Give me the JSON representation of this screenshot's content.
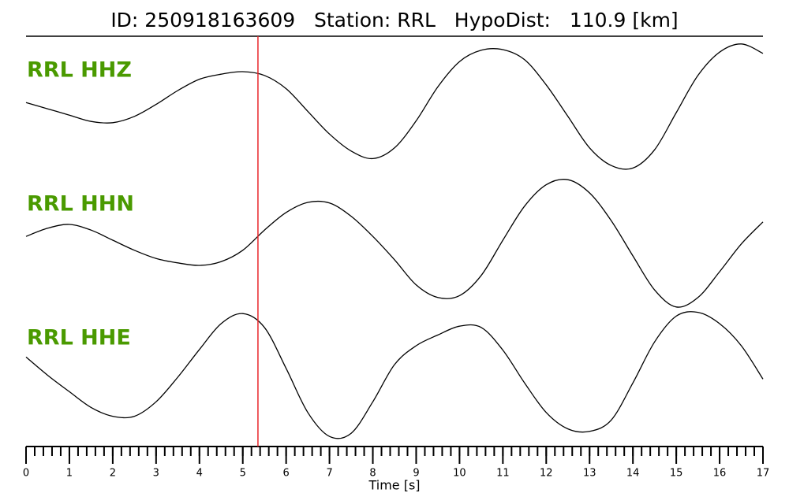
{
  "chart_data": {
    "type": "line",
    "title": "ID: 250918163609   Station: RRL   HypoDist:   110.9 [km]",
    "x_label": "Time [s]",
    "xlim": [
      0,
      17
    ],
    "xticks": [
      0,
      1,
      2,
      3,
      4,
      5,
      6,
      7,
      8,
      9,
      10,
      11,
      12,
      13,
      14,
      15,
      16,
      17
    ],
    "x_minor_tick_step": 0.2,
    "ylim": [
      -1,
      1
    ],
    "pick_time": 5.35,
    "pick_color": "#e8262a",
    "x": [
      0,
      0.5,
      1,
      1.5,
      2,
      2.5,
      3,
      3.5,
      4,
      4.5,
      5,
      5.5,
      6,
      6.5,
      7,
      7.5,
      8,
      8.5,
      9,
      9.5,
      10,
      10.5,
      11,
      11.5,
      12,
      12.5,
      13,
      13.5,
      14,
      14.5,
      15,
      15.5,
      16,
      16.5,
      17
    ],
    "series": [
      {
        "name": "RRL HHZ",
        "color": "#000000",
        "label_color": "#4a9a00",
        "values": [
          0.06,
          -0.04,
          -0.14,
          -0.24,
          -0.26,
          -0.16,
          0.03,
          0.25,
          0.43,
          0.51,
          0.55,
          0.49,
          0.28,
          -0.08,
          -0.44,
          -0.71,
          -0.83,
          -0.66,
          -0.23,
          0.31,
          0.71,
          0.89,
          0.9,
          0.74,
          0.34,
          -0.16,
          -0.66,
          -0.94,
          -0.98,
          -0.69,
          -0.1,
          0.49,
          0.86,
          0.99,
          0.84
        ]
      },
      {
        "name": "RRL HHN",
        "color": "#000000",
        "label_color": "#4a9a00",
        "values": [
          0.06,
          0.19,
          0.25,
          0.16,
          0,
          -0.16,
          -0.29,
          -0.36,
          -0.4,
          -0.34,
          -0.16,
          0.16,
          0.44,
          0.6,
          0.59,
          0.38,
          0.06,
          -0.31,
          -0.71,
          -0.91,
          -0.88,
          -0.56,
          0,
          0.54,
          0.88,
          0.96,
          0.75,
          0.31,
          -0.25,
          -0.79,
          -1.06,
          -0.91,
          -0.5,
          -0.06,
          0.29
        ]
      },
      {
        "name": "RRL HHE",
        "color": "#000000",
        "label_color": "#4a9a00",
        "values": [
          0.27,
          -0.02,
          -0.28,
          -0.53,
          -0.67,
          -0.67,
          -0.44,
          -0.05,
          0.39,
          0.8,
          0.96,
          0.74,
          0.09,
          -0.61,
          -0.99,
          -0.94,
          -0.44,
          0.15,
          0.45,
          0.62,
          0.76,
          0.74,
          0.38,
          -0.14,
          -0.61,
          -0.87,
          -0.91,
          -0.73,
          -0.14,
          0.51,
          0.92,
          0.98,
          0.8,
          0.45,
          -0.08
        ]
      }
    ]
  }
}
